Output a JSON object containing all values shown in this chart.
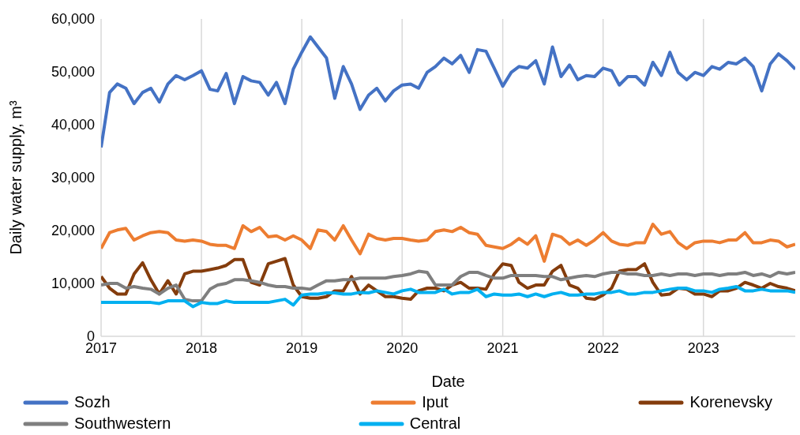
{
  "chart_data": {
    "type": "line",
    "xlabel": "Date",
    "ylabel": "Daily water supply, m³",
    "x": [
      "2017-01",
      "2017-02",
      "2017-03",
      "2017-04",
      "2017-05",
      "2017-06",
      "2017-07",
      "2017-08",
      "2017-09",
      "2017-10",
      "2017-11",
      "2017-12",
      "2018-01",
      "2018-02",
      "2018-03",
      "2018-04",
      "2018-05",
      "2018-06",
      "2018-07",
      "2018-08",
      "2018-09",
      "2018-10",
      "2018-11",
      "2018-12",
      "2019-01",
      "2019-02",
      "2019-03",
      "2019-04",
      "2019-05",
      "2019-06",
      "2019-07",
      "2019-08",
      "2019-09",
      "2019-10",
      "2019-11",
      "2019-12",
      "2020-01",
      "2020-02",
      "2020-03",
      "2020-04",
      "2020-05",
      "2020-06",
      "2020-07",
      "2020-08",
      "2020-09",
      "2020-10",
      "2020-11",
      "2020-12",
      "2021-01",
      "2021-02",
      "2021-03",
      "2021-04",
      "2021-05",
      "2021-06",
      "2021-07",
      "2021-08",
      "2021-09",
      "2021-10",
      "2021-11",
      "2021-12",
      "2022-01",
      "2022-02",
      "2022-03",
      "2022-04",
      "2022-05",
      "2022-06",
      "2022-07",
      "2022-08",
      "2022-09",
      "2022-10",
      "2022-11",
      "2022-12",
      "2023-01",
      "2023-02",
      "2023-03",
      "2023-04",
      "2023-05",
      "2023-06",
      "2023-07",
      "2023-08",
      "2023-09",
      "2023-10",
      "2023-11",
      "2023-12"
    ],
    "series": [
      {
        "name": "Sozh",
        "color": "#4472c4",
        "values": [
          35700,
          46100,
          47700,
          46900,
          44000,
          46100,
          46900,
          44300,
          47700,
          49300,
          48500,
          49300,
          50200,
          46700,
          46400,
          49700,
          44000,
          49100,
          48300,
          48000,
          45600,
          48000,
          44000,
          50500,
          53700,
          56600,
          54700,
          52600,
          45000,
          51000,
          47700,
          42900,
          45600,
          46900,
          44500,
          46400,
          47500,
          47700,
          46900,
          49900,
          51000,
          52600,
          51500,
          53100,
          49900,
          54200,
          53900,
          50700,
          47300,
          49900,
          51000,
          50700,
          52100,
          47700,
          54700,
          49100,
          51300,
          48500,
          49300,
          49100,
          50700,
          50200,
          47500,
          49100,
          49100,
          47500,
          51800,
          49300,
          53700,
          49900,
          48500,
          49900,
          49300,
          51000,
          50500,
          51800,
          51500,
          52600,
          51000,
          46400,
          51500,
          53400,
          52100,
          50500
        ]
      },
      {
        "name": "Iput",
        "color": "#ed7d31",
        "values": [
          16600,
          19600,
          20100,
          20400,
          18200,
          19000,
          19600,
          19800,
          19600,
          18200,
          18000,
          18200,
          18000,
          17400,
          17200,
          17200,
          16600,
          20900,
          19800,
          20600,
          18800,
          19000,
          18200,
          19000,
          18200,
          16600,
          20100,
          19800,
          18200,
          20900,
          18200,
          15600,
          19300,
          18500,
          18200,
          18500,
          18500,
          18200,
          18000,
          18200,
          19800,
          20100,
          19800,
          20600,
          19600,
          19300,
          17200,
          16900,
          16600,
          17400,
          18500,
          17400,
          19000,
          14200,
          19300,
          18800,
          17400,
          18200,
          17200,
          18200,
          19600,
          18000,
          17400,
          17200,
          17700,
          17700,
          21200,
          19300,
          19800,
          17700,
          16600,
          17700,
          18000,
          18000,
          17700,
          18200,
          18200,
          19600,
          17700,
          17700,
          18200,
          18000,
          16900,
          17400
        ]
      },
      {
        "name": "Korenevsky",
        "color": "#843c0c",
        "values": [
          11300,
          9100,
          8000,
          8000,
          11800,
          13900,
          10700,
          8000,
          10500,
          8000,
          11800,
          12300,
          12300,
          12600,
          12900,
          13400,
          14500,
          14500,
          10200,
          9700,
          13700,
          14200,
          14700,
          9700,
          7500,
          7200,
          7200,
          7500,
          8600,
          8600,
          11300,
          8000,
          9700,
          8600,
          7500,
          7500,
          7200,
          7000,
          8600,
          9100,
          9100,
          8600,
          9700,
          10200,
          9100,
          9100,
          8900,
          11800,
          13700,
          13400,
          10200,
          9100,
          9700,
          9700,
          12300,
          13400,
          9700,
          9100,
          7200,
          7000,
          7800,
          9100,
          12300,
          12600,
          12600,
          13700,
          10200,
          7800,
          8000,
          9100,
          8900,
          8000,
          8000,
          7500,
          8600,
          8600,
          9100,
          10200,
          9700,
          9100,
          10000,
          9400,
          9100,
          8600
        ]
      },
      {
        "name": "Southwestern",
        "color": "#7f7f7f",
        "values": [
          9700,
          10000,
          10000,
          9100,
          9400,
          9100,
          8900,
          8000,
          9100,
          9700,
          7000,
          6700,
          6700,
          8900,
          9700,
          10000,
          10700,
          10700,
          10500,
          10200,
          9700,
          9400,
          9400,
          9100,
          9100,
          8900,
          9700,
          10500,
          10500,
          10700,
          10700,
          11000,
          11000,
          11000,
          11000,
          11300,
          11500,
          11800,
          12300,
          12100,
          9700,
          9700,
          9700,
          11300,
          12100,
          12100,
          11500,
          11000,
          11000,
          11500,
          11500,
          11500,
          11500,
          11300,
          11300,
          10700,
          11000,
          11300,
          11500,
          11300,
          11800,
          12100,
          12100,
          11800,
          11800,
          11500,
          11500,
          11800,
          11500,
          11800,
          11800,
          11500,
          11800,
          11800,
          11500,
          11800,
          11800,
          12100,
          11500,
          11800,
          11300,
          12100,
          11800,
          12100
        ]
      },
      {
        "name": "Central",
        "color": "#00b0f0",
        "values": [
          6400,
          6400,
          6400,
          6400,
          6400,
          6400,
          6400,
          6200,
          6700,
          6700,
          6700,
          5600,
          6400,
          6200,
          6200,
          6700,
          6400,
          6400,
          6400,
          6400,
          6400,
          6700,
          7000,
          5900,
          7800,
          8000,
          8000,
          8200,
          8200,
          8000,
          8000,
          8300,
          8200,
          8600,
          8300,
          8000,
          8600,
          8900,
          8300,
          8300,
          8300,
          8900,
          8000,
          8300,
          8300,
          8900,
          7500,
          8000,
          7800,
          7800,
          8000,
          7500,
          8000,
          7500,
          8000,
          8300,
          7800,
          7800,
          8000,
          8000,
          8300,
          8300,
          8600,
          8000,
          8000,
          8300,
          8300,
          8600,
          8900,
          9100,
          9100,
          8600,
          8600,
          8300,
          8900,
          9100,
          9400,
          8600,
          8600,
          8900,
          8600,
          8600,
          8600,
          8300
        ]
      }
    ],
    "xlim": [
      "2017-01",
      "2023-12"
    ],
    "xticks": [
      "2017",
      "2018",
      "2019",
      "2020",
      "2021",
      "2022",
      "2023"
    ],
    "ylim": [
      0,
      60000
    ],
    "yticks": [
      {
        "value": 0,
        "label": "0"
      },
      {
        "value": 10000,
        "label": "10,000"
      },
      {
        "value": 20000,
        "label": "20,000"
      },
      {
        "value": 30000,
        "label": "30,000"
      },
      {
        "value": 40000,
        "label": "40,000"
      },
      {
        "value": 50000,
        "label": "50,000"
      },
      {
        "value": 60000,
        "label": "60,000"
      }
    ],
    "grid": true,
    "legend": "bottom"
  }
}
